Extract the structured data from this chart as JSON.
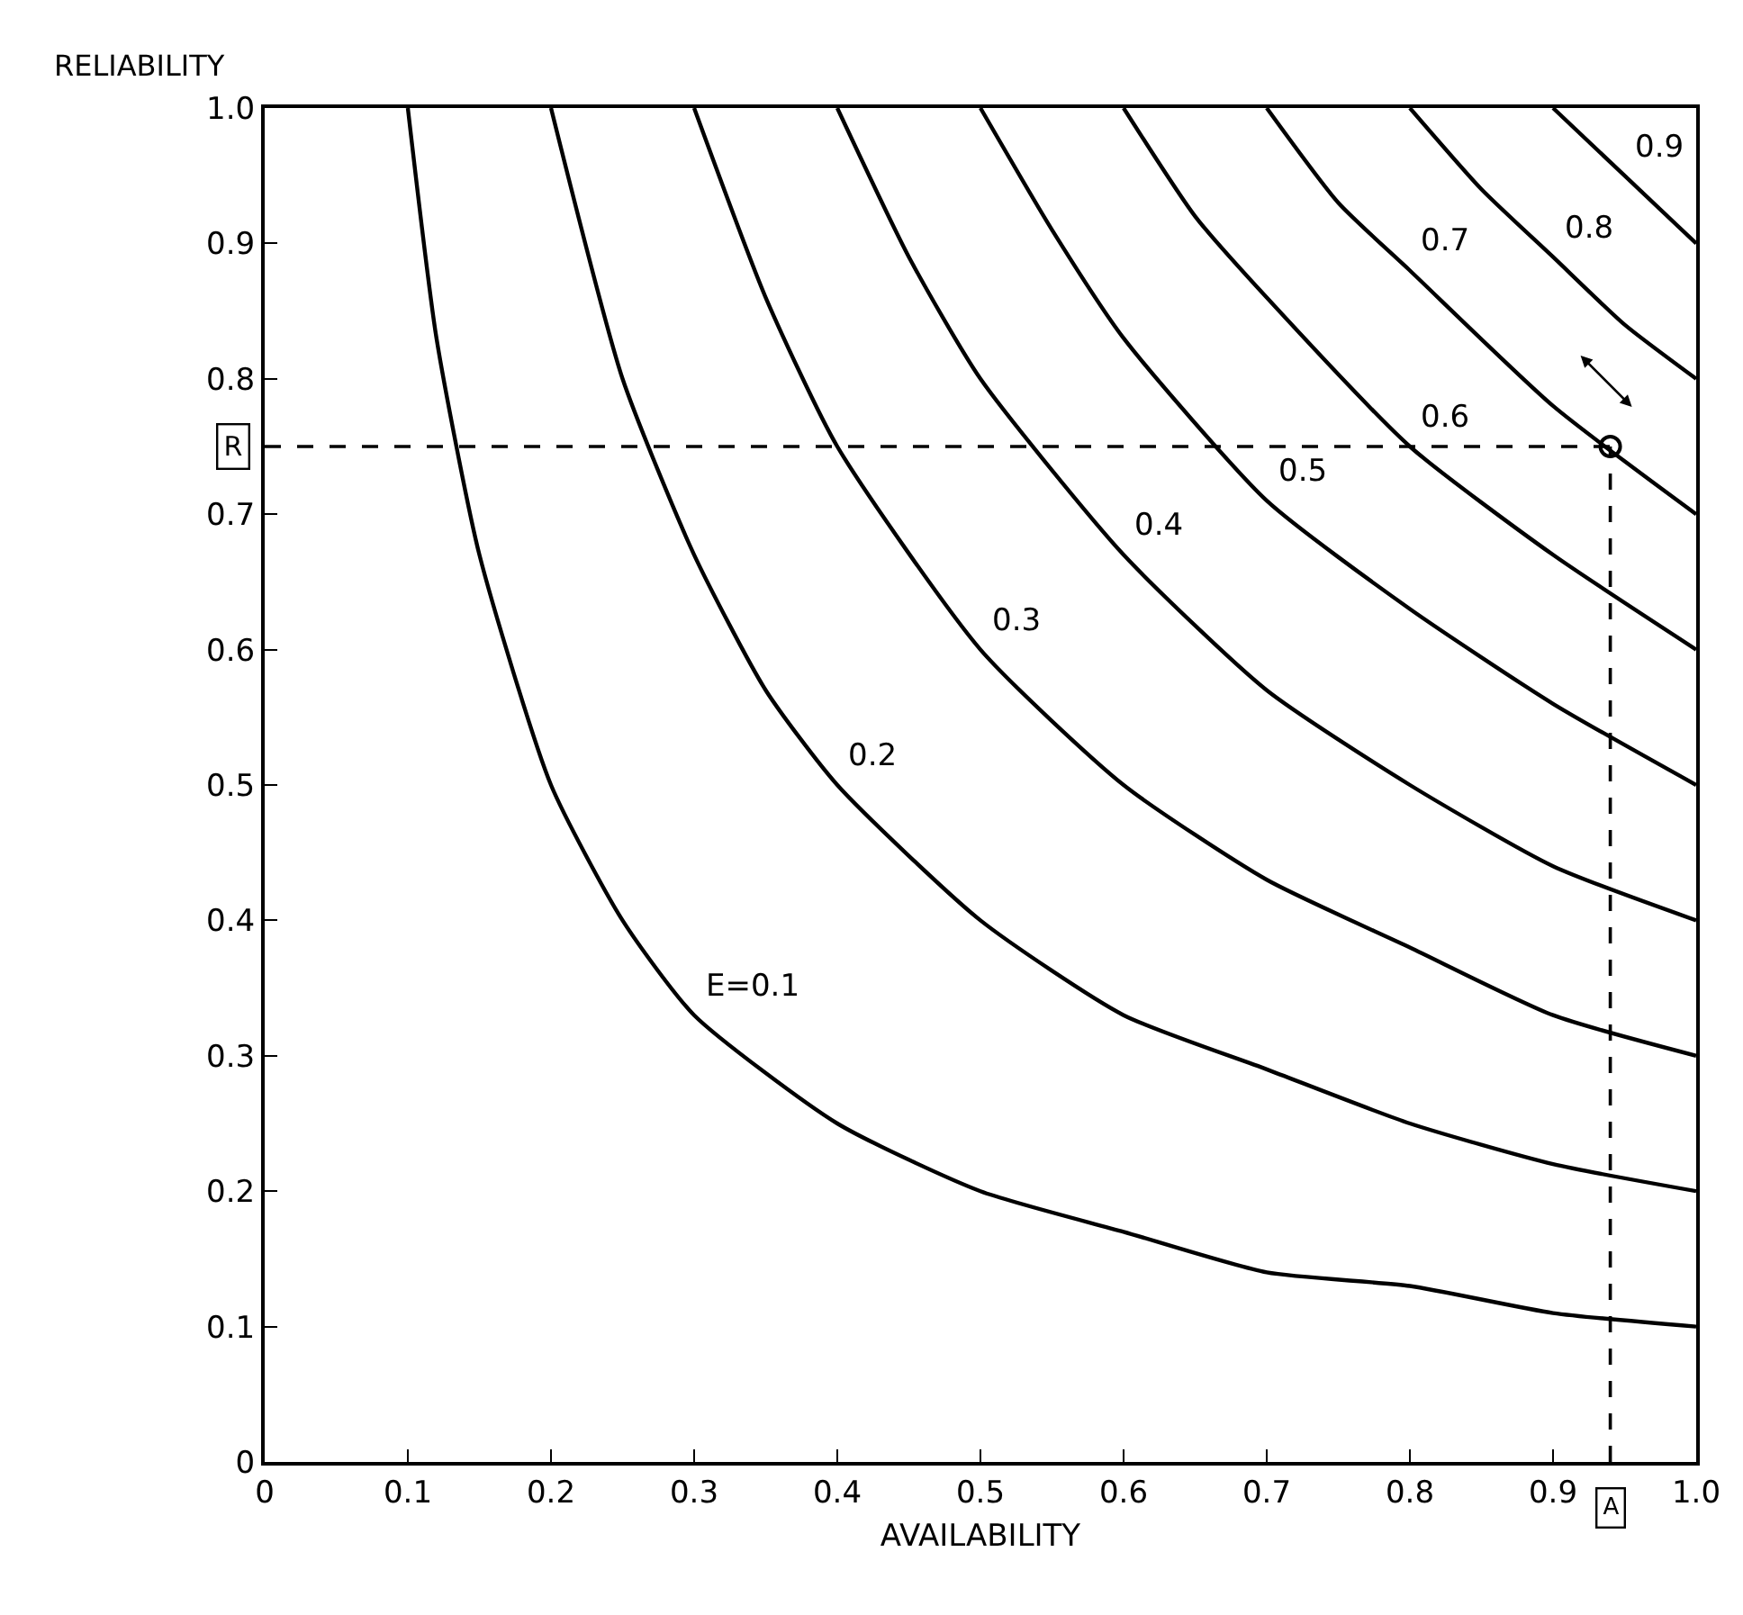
{
  "chart_data": {
    "type": "line",
    "xlabel": "AVAILABILITY",
    "ylabel": "RELIABILITY",
    "xlim": [
      0,
      1
    ],
    "ylim": [
      0,
      1
    ],
    "xticks": [
      0,
      0.1,
      0.2,
      0.3,
      0.4,
      0.5,
      0.6,
      0.7,
      0.8,
      0.9,
      {
        "value": 1,
        "label": "1.0"
      }
    ],
    "yticks": [
      0,
      0.1,
      0.2,
      0.3,
      0.4,
      0.5,
      0.6,
      0.7,
      0.8,
      0.9,
      {
        "value": 1,
        "label": "1.0"
      }
    ],
    "grid": false,
    "legend": false,
    "line_style": "solid",
    "marker": "none",
    "series": [
      {
        "name": "E=0.1",
        "color": "#000000",
        "x": [
          0.1,
          0.12,
          0.15,
          0.2,
          0.25,
          0.3,
          0.4,
          0.5,
          0.6,
          0.7,
          0.8,
          0.9,
          1.0
        ],
        "values": [
          1.0,
          0.83,
          0.67,
          0.5,
          0.4,
          0.33,
          0.25,
          0.2,
          0.17,
          0.14,
          0.13,
          0.11,
          0.1
        ]
      },
      {
        "name": "0.2",
        "color": "#000000",
        "x": [
          0.2,
          0.25,
          0.3,
          0.35,
          0.4,
          0.5,
          0.6,
          0.7,
          0.8,
          0.9,
          1.0
        ],
        "values": [
          1.0,
          0.8,
          0.67,
          0.57,
          0.5,
          0.4,
          0.33,
          0.29,
          0.25,
          0.22,
          0.2
        ]
      },
      {
        "name": "0.3",
        "color": "#000000",
        "x": [
          0.3,
          0.35,
          0.4,
          0.5,
          0.6,
          0.7,
          0.8,
          0.9,
          1.0
        ],
        "values": [
          1.0,
          0.86,
          0.75,
          0.6,
          0.5,
          0.43,
          0.38,
          0.33,
          0.3
        ]
      },
      {
        "name": "0.4",
        "color": "#000000",
        "x": [
          0.4,
          0.45,
          0.5,
          0.6,
          0.7,
          0.8,
          0.9,
          1.0
        ],
        "values": [
          1.0,
          0.89,
          0.8,
          0.67,
          0.57,
          0.5,
          0.44,
          0.4
        ]
      },
      {
        "name": "0.5",
        "color": "#000000",
        "x": [
          0.5,
          0.55,
          0.6,
          0.7,
          0.8,
          0.9,
          1.0
        ],
        "values": [
          1.0,
          0.91,
          0.83,
          0.71,
          0.63,
          0.56,
          0.5
        ]
      },
      {
        "name": "0.6",
        "color": "#000000",
        "x": [
          0.6,
          0.65,
          0.7,
          0.8,
          0.9,
          1.0
        ],
        "values": [
          1.0,
          0.92,
          0.86,
          0.75,
          0.67,
          0.6
        ]
      },
      {
        "name": "0.7",
        "color": "#000000",
        "x": [
          0.7,
          0.75,
          0.8,
          0.9,
          1.0
        ],
        "values": [
          1.0,
          0.93,
          0.88,
          0.78,
          0.7
        ]
      },
      {
        "name": "0.8",
        "color": "#000000",
        "x": [
          0.8,
          0.85,
          0.9,
          0.95,
          1.0
        ],
        "values": [
          1.0,
          0.94,
          0.89,
          0.84,
          0.8
        ]
      },
      {
        "name": "0.9",
        "color": "#000000",
        "x": [
          0.9,
          0.95,
          1.0
        ],
        "values": [
          1.0,
          0.95,
          0.9
        ]
      },
      {
        "type": "scatter",
        "marker": "circle",
        "color": "#000000",
        "x": [
          0.94
        ],
        "values": [
          0.75
        ]
      }
    ],
    "ref_lines": [
      {
        "axis": "y",
        "value": 0.75,
        "label": "R",
        "line_style": "dashed",
        "color": "#000000"
      },
      {
        "axis": "x",
        "value": 0.94,
        "label": "A",
        "line_style": "dashed",
        "color": "#000000"
      }
    ]
  }
}
